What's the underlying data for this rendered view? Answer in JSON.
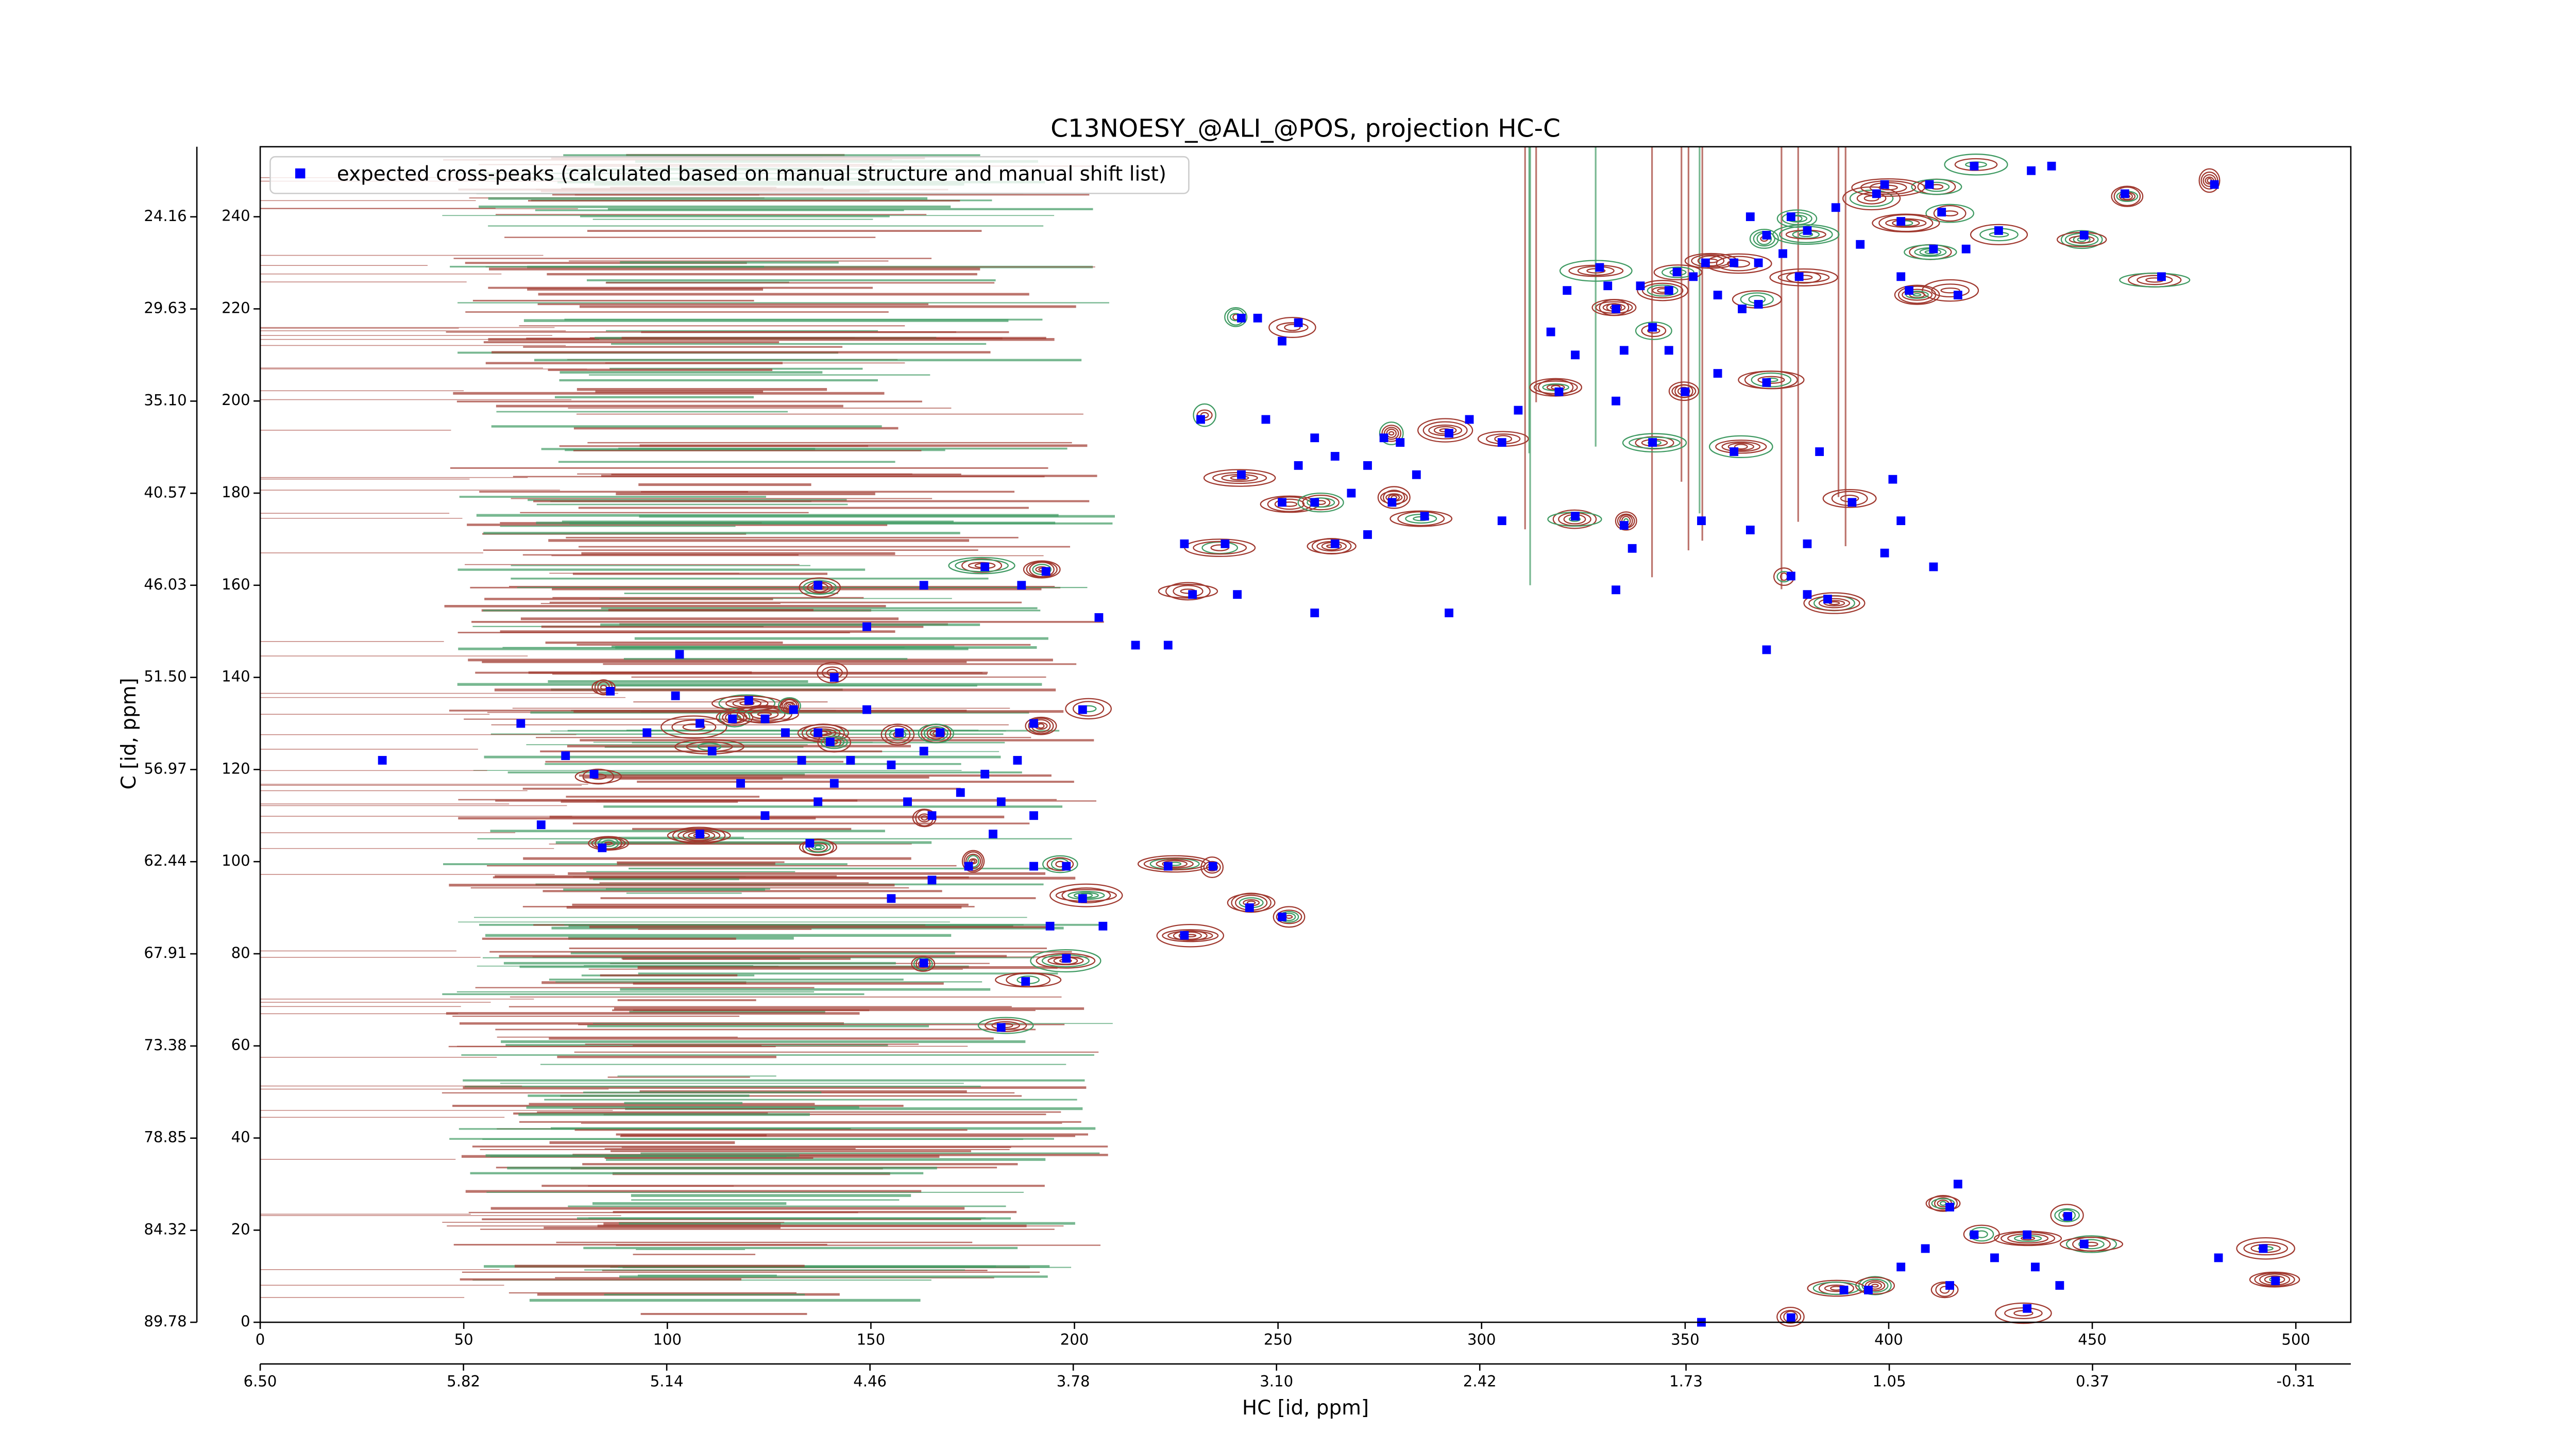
{
  "chart_data": {
    "type": "scatter",
    "title": "C13NOESY_@ALI_@POS, projection HC-C",
    "xlabel": "HC [id, ppm]",
    "ylabel": "C [id, ppm]",
    "xlim": [
      0,
      513.5
    ],
    "xticks": [
      0,
      50,
      100,
      150,
      200,
      250,
      300,
      350,
      400,
      450,
      500
    ],
    "x2lim": [
      6.5,
      -0.494
    ],
    "x2ticks": [
      {
        "value": 6.5,
        "label": "6.50"
      },
      5.82,
      5.14,
      4.46,
      3.78,
      {
        "value": 3.1,
        "label": "3.10"
      },
      2.42,
      1.73,
      1.05,
      0.37,
      -0.31
    ],
    "ylim": [
      0,
      255.2
    ],
    "yticks": [
      0,
      20,
      40,
      60,
      80,
      100,
      120,
      140,
      160,
      180,
      200,
      220,
      240
    ],
    "y2lim": [
      89.78,
      20.0
    ],
    "y2ticks": [
      89.78,
      84.32,
      78.85,
      73.38,
      67.91,
      62.44,
      56.97,
      {
        "value": 51.5,
        "label": "51.50"
      },
      46.03,
      40.57,
      {
        "value": 35.1,
        "label": "35.10"
      },
      29.63,
      24.16
    ],
    "legend": "upper left",
    "series": [
      {
        "name": "expected cross-peaks (calculated based on manual structure and manual shift list)",
        "color": "#0000ff",
        "x": [
          480,
          458,
          440,
          435,
          421,
          410,
          413,
          403,
          397,
          399,
          387,
          393,
          380,
          376,
          370,
          366,
          362,
          368,
          374,
          378,
          355,
          352,
          348,
          346,
          358,
          364,
          368,
          339,
          333,
          329,
          331,
          342,
          335,
          346,
          321,
          317,
          323,
          319,
          309,
          305,
          342,
          350,
          358,
          370,
          383,
          362,
          333,
          419,
          427,
          448,
          467,
          417,
          411,
          403,
          405,
          231,
          247,
          259,
          264,
          255,
          241,
          251,
          259,
          268,
          272,
          276,
          280,
          278,
          284,
          286,
          292,
          297,
          272,
          264,
          305,
          323,
          255,
          245,
          251,
          241,
          227,
          237,
          229,
          240,
          292,
          259,
          335,
          337,
          354,
          366,
          380,
          399,
          411,
          403,
          391,
          401,
          376,
          380,
          385,
          370,
          333,
          206,
          215,
          223,
          202,
          190,
          167,
          64,
          30,
          75,
          82,
          86,
          95,
          103,
          102,
          108,
          111,
          116,
          120,
          124,
          129,
          131,
          133,
          137,
          141,
          140,
          145,
          149,
          157,
          163,
          155,
          159,
          165,
          172,
          178,
          186,
          182,
          190,
          180,
          174,
          190,
          165,
          155,
          202,
          198,
          207,
          194,
          223,
          234,
          243,
          251,
          227,
          163,
          188,
          182,
          198,
          69,
          84,
          108,
          124,
          135,
          137,
          163,
          178,
          187,
          193,
          149,
          118,
          141,
          137,
          417,
          415,
          421,
          409,
          403,
          395,
          389,
          376,
          426,
          434,
          436,
          444,
          448,
          442,
          434,
          415,
          481,
          492,
          495,
          354
        ],
        "values": [
          247,
          245,
          251,
          250,
          251,
          247,
          241,
          239,
          245,
          247,
          242,
          234,
          237,
          240,
          236,
          240,
          230,
          230,
          232,
          227,
          230,
          227,
          228,
          224,
          223,
          220,
          221,
          225,
          220,
          229,
          225,
          216,
          211,
          211,
          224,
          215,
          210,
          202,
          198,
          191,
          191,
          202,
          206,
          204,
          189,
          189,
          200,
          233,
          237,
          236,
          227,
          223,
          233,
          227,
          224,
          196,
          196,
          192,
          188,
          186,
          184,
          178,
          178,
          180,
          186,
          192,
          191,
          178,
          184,
          175,
          193,
          196,
          171,
          169,
          174,
          175,
          217,
          218,
          213,
          218,
          169,
          169,
          158,
          158,
          154,
          154,
          173,
          168,
          174,
          172,
          169,
          167,
          164,
          174,
          178,
          183,
          162,
          158,
          157,
          146,
          159,
          153,
          147,
          147,
          133,
          130,
          128,
          130,
          122,
          123,
          119,
          137,
          128,
          145,
          136,
          130,
          124,
          131,
          135,
          131,
          128,
          133,
          122,
          128,
          140,
          126,
          122,
          133,
          128,
          124,
          121,
          113,
          110,
          115,
          119,
          122,
          113,
          110,
          106,
          99,
          99,
          96,
          92,
          92,
          99,
          86,
          86,
          99,
          99,
          90,
          88,
          84,
          78,
          74,
          64,
          79,
          108,
          103,
          106,
          110,
          104,
          160,
          160,
          164,
          160,
          163,
          151,
          117,
          117,
          113,
          30,
          25,
          19,
          16,
          12,
          7,
          7,
          1,
          14,
          19,
          12,
          23,
          17,
          8,
          3,
          8,
          14,
          16,
          9,
          0
        ]
      }
    ]
  }
}
